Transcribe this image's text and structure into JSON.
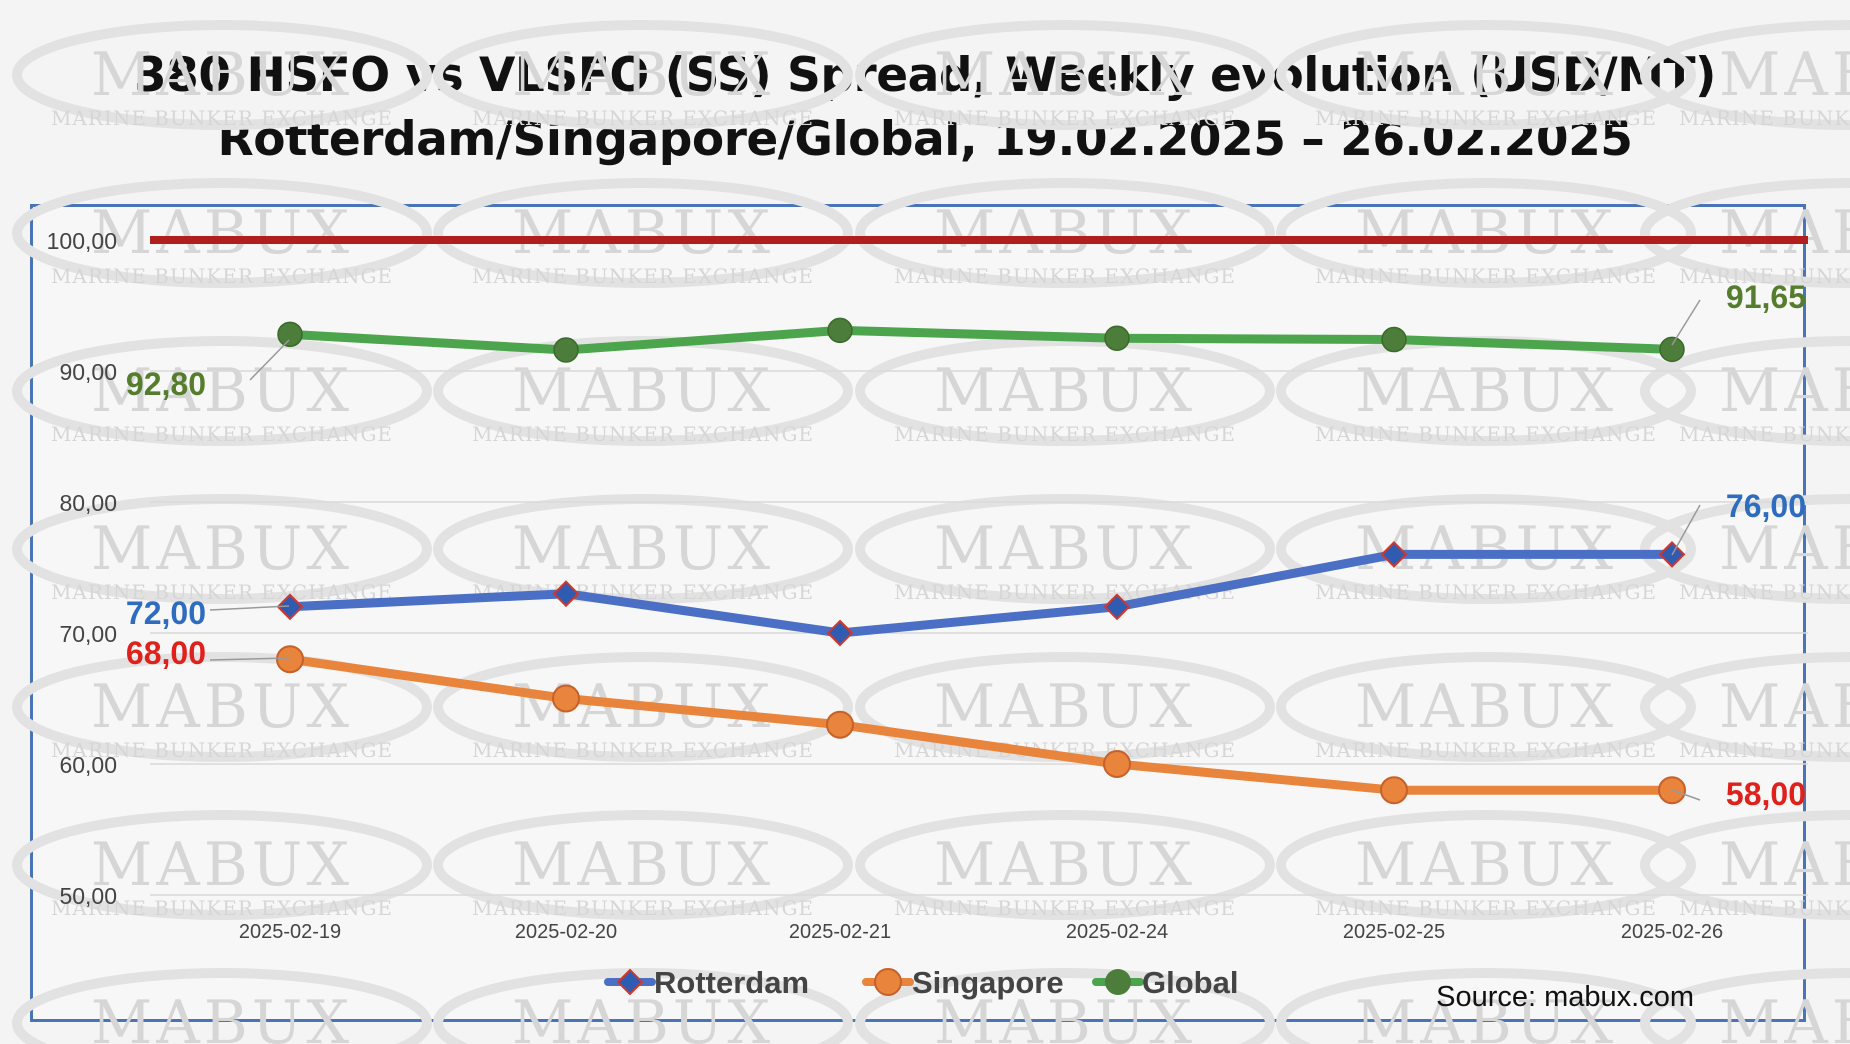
{
  "title_line1": "380 HSFO vs VLSFO (SS) Spread, Weekly evolution (USD/MT)",
  "title_line2": "Rotterdam/Singapore/Global, 19.02.2025 – 26.02.2025",
  "source": "Source: mabux.com",
  "watermark": {
    "main": "MABUX",
    "sub": "MARINE BUNKER EXCHANGE"
  },
  "colors": {
    "rotterdam": "#4a6fc4",
    "singapore": "#e8843c",
    "global": "#4ca54c",
    "global_marker": "#4d7d3a",
    "threshold": "#b01e1e",
    "label_rotterdam": "#2e6cc0",
    "label_singapore": "#e0201a",
    "label_global": "#567d2e",
    "frame": "#4a74b8"
  },
  "chart_data": {
    "type": "line",
    "categories": [
      "2025-02-19",
      "2025-02-20",
      "2025-02-21",
      "2025-02-24",
      "2025-02-25",
      "2025-02-26"
    ],
    "ylim": [
      50,
      100
    ],
    "yticks": [
      50,
      60,
      70,
      80,
      90,
      100
    ],
    "ytick_labels": [
      "50,00",
      "60,00",
      "70,00",
      "80,00",
      "90,00",
      "100,00"
    ],
    "threshold": 100,
    "series": [
      {
        "name": "Rotterdam",
        "key": "rotterdam",
        "marker": "diamond",
        "values": [
          72,
          73,
          70,
          72,
          76,
          76
        ]
      },
      {
        "name": "Singapore",
        "key": "singapore",
        "marker": "circle",
        "values": [
          68,
          65,
          63,
          60,
          58,
          58
        ]
      },
      {
        "name": "Global",
        "key": "global",
        "marker": "circle",
        "values": [
          92.8,
          91.6,
          93.1,
          92.5,
          92.4,
          91.65
        ]
      }
    ],
    "data_labels": [
      {
        "series": "Global",
        "text": "92,80"
      },
      {
        "series": "Global",
        "text": "91,65"
      },
      {
        "series": "Rotterdam",
        "text": "72,00"
      },
      {
        "series": "Rotterdam",
        "text": "76,00"
      },
      {
        "series": "Singapore",
        "text": "68,00"
      },
      {
        "series": "Singapore",
        "text": "58,00"
      }
    ],
    "legend_position": "bottom",
    "grid": true
  }
}
